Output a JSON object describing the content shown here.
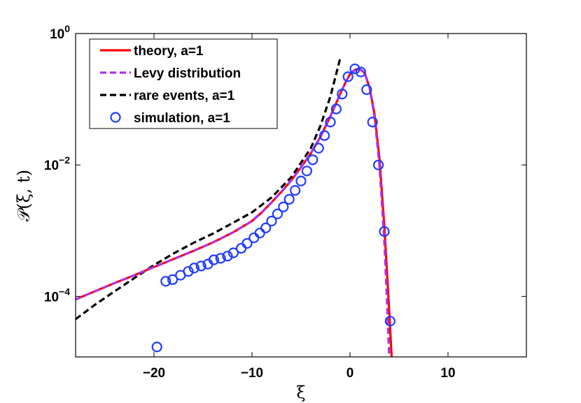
{
  "chart_data": {
    "type": "line",
    "title": "",
    "xlabel": "ξ",
    "ylabel": "𝒫(ξ, t)",
    "xlim": [
      -28,
      18
    ],
    "ylim": [
      1.2e-05,
      1
    ],
    "yscale": "log",
    "x_ticks": [
      -20,
      -10,
      0,
      10
    ],
    "x_tick_labels": [
      "−20",
      "−10",
      "0",
      "10"
    ],
    "y_ticks": [
      1,
      0.01,
      0.0001
    ],
    "y_tick_labels": [
      {
        "base": "10",
        "exp": "0"
      },
      {
        "base": "10",
        "exp": "−2"
      },
      {
        "base": "10",
        "exp": "−4"
      }
    ],
    "legend_position": "top-left",
    "colors": {
      "theory": "#ff0000",
      "levy": "#b030ee",
      "rare": "#000000",
      "simulation": "#1f3cff"
    },
    "series": [
      {
        "name": "theory, a=1",
        "style": "solid",
        "x": [
          -28,
          -26,
          -24,
          -22,
          -20,
          -18,
          -16,
          -14,
          -12,
          -10,
          -9,
          -8,
          -7,
          -6,
          -5,
          -4,
          -3,
          -2,
          -1,
          -0.5,
          0,
          0.5,
          1,
          1.5,
          2,
          2.5,
          3,
          3.5,
          4,
          4.25
        ],
        "y": [
          9e-05,
          0.00012,
          0.00016,
          0.00021,
          0.00028,
          0.00037,
          0.00049,
          0.00066,
          0.00093,
          0.0014,
          0.0019,
          0.0027,
          0.0039,
          0.0058,
          0.0092,
          0.015,
          0.027,
          0.055,
          0.12,
          0.175,
          0.24,
          0.28,
          0.29,
          0.25,
          0.15,
          0.06,
          0.013,
          0.0012,
          6e-05,
          1.2e-05
        ]
      },
      {
        "name": "Levy distribution",
        "style": "dashed",
        "x": [
          -28,
          -26,
          -24,
          -22,
          -20,
          -18,
          -16,
          -14,
          -12,
          -10,
          -9,
          -8,
          -7,
          -6,
          -5,
          -4,
          -3,
          -2,
          -1,
          -0.5,
          0,
          0.5,
          1,
          1.5,
          2,
          2.5,
          3,
          3.5,
          3.8,
          4.0
        ],
        "y": [
          9e-05,
          0.00012,
          0.00016,
          0.00021,
          0.00028,
          0.00037,
          0.00049,
          0.00066,
          0.00093,
          0.0014,
          0.0019,
          0.0027,
          0.0039,
          0.0058,
          0.0092,
          0.015,
          0.027,
          0.055,
          0.12,
          0.175,
          0.24,
          0.28,
          0.29,
          0.25,
          0.15,
          0.055,
          0.01,
          0.0007,
          7e-05,
          1.2e-05
        ]
      },
      {
        "name": "rare events, a=1",
        "style": "dashed",
        "x": [
          -28,
          -26,
          -24,
          -22,
          -20,
          -18,
          -16,
          -14,
          -12,
          -10,
          -8,
          -6,
          -4,
          -3,
          -2,
          -1
        ],
        "y": [
          4.5e-05,
          7.5e-05,
          0.00012,
          0.00019,
          0.0003,
          0.00045,
          0.00065,
          0.0009,
          0.0013,
          0.0019,
          0.0032,
          0.0065,
          0.018,
          0.04,
          0.11,
          0.42
        ]
      },
      {
        "name": "simulation, a=1",
        "style": "markers",
        "x": [
          -19.7,
          -18.8,
          -18.1,
          -17.3,
          -16.5,
          -15.9,
          -15.2,
          -14.5,
          -13.9,
          -13.2,
          -12.5,
          -11.9,
          -11.1,
          -10.5,
          -9.8,
          -9.2,
          -8.6,
          -8.0,
          -7.4,
          -6.8,
          -6.2,
          -5.6,
          -5.0,
          -4.4,
          -3.8,
          -3.2,
          -2.6,
          -2.0,
          -1.4,
          -0.8,
          -0.2,
          0.5,
          1.1,
          1.7,
          2.3,
          2.9,
          3.5,
          4.1
        ],
        "y": [
          1.7e-05,
          0.00017,
          0.00018,
          0.00021,
          0.00024,
          0.00027,
          0.00029,
          0.00031,
          0.00036,
          0.00038,
          0.00041,
          0.00046,
          0.00054,
          0.00064,
          0.00078,
          0.00092,
          0.0011,
          0.0014,
          0.0018,
          0.0023,
          0.003,
          0.0041,
          0.0057,
          0.0081,
          0.012,
          0.018,
          0.028,
          0.045,
          0.071,
          0.12,
          0.22,
          0.29,
          0.26,
          0.14,
          0.045,
          0.01,
          0.00097,
          4.2e-05
        ]
      }
    ]
  }
}
